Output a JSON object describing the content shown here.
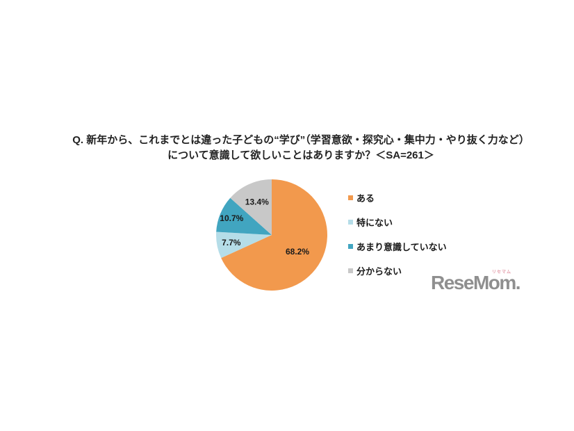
{
  "title": {
    "line1": "Q. 新年から、これまでとは違った子どもの“学び”（学習意欲・探究心・集中力・やり抜く力など）",
    "line2": "について意識して欲しいことはありますか？＜SA=261＞"
  },
  "chart_data": {
    "type": "pie",
    "title": "Q. 新年から、これまでとは違った子どもの“学び”（学習意欲・探究心・集中力・やり抜く力など）について意識して欲しいことはありますか？",
    "sample_label": "SA=261",
    "start_angle_deg": 0,
    "direction": "clockwise",
    "legend_position": "right",
    "value_label_color": "#1A1A1A",
    "slices": [
      {
        "label": "ある",
        "value": 68.2,
        "pct_label": "68.2%",
        "color": "#F2994D",
        "label_r": 0.55
      },
      {
        "label": "特にない",
        "value": 7.7,
        "pct_label": "7.7%",
        "color": "#B5DDE8",
        "label_r": 0.74
      },
      {
        "label": "あまり意識していない",
        "value": 10.7,
        "pct_label": "10.7%",
        "color": "#41A5C0",
        "label_r": 0.78
      },
      {
        "label": "分からない",
        "value": 13.4,
        "pct_label": "13.4%",
        "color": "#C8C8C8",
        "label_r": 0.65
      }
    ]
  },
  "logo": {
    "text": "ReseMom",
    "period": ".",
    "ruby": "リセマム",
    "color": "#8F8F8F",
    "ruby_color": "#E39BA8"
  }
}
